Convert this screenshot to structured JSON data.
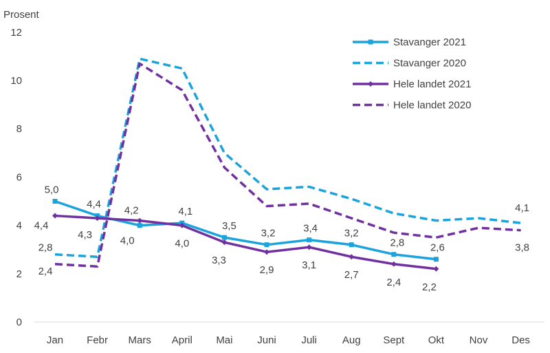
{
  "chart_data": {
    "type": "line",
    "ylabel": "Prosent",
    "ylim": [
      0,
      12
    ],
    "yticks": [
      "0",
      "2",
      "4",
      "6",
      "8",
      "10",
      "12"
    ],
    "categories": [
      "Jan",
      "Febr",
      "Mars",
      "April",
      "Mai",
      "Juni",
      "Juli",
      "Aug",
      "Sept",
      "Okt",
      "Nov",
      "Des"
    ],
    "grid": false,
    "legend_position": "top-right",
    "series": [
      {
        "name": "Stavanger 2021",
        "color": "#1aa3dc",
        "style": "solid-square",
        "values": [
          5.0,
          4.4,
          4.0,
          4.1,
          3.5,
          3.2,
          3.4,
          3.2,
          2.8,
          2.6,
          null,
          null
        ],
        "labels": [
          "5,0",
          "4,4",
          "4,0",
          "4,1",
          "3,5",
          "3,2",
          "3,4",
          "3,2",
          "2,8",
          "2,6",
          "",
          ""
        ]
      },
      {
        "name": "Stavanger 2020",
        "color": "#1aa3dc",
        "style": "dashed",
        "values": [
          2.8,
          2.7,
          10.9,
          10.5,
          7.0,
          5.5,
          5.6,
          5.1,
          4.5,
          4.2,
          4.3,
          4.1
        ],
        "labels": [
          "2,8",
          "",
          "",
          "",
          "",
          "",
          "",
          "",
          "",
          "",
          "",
          "4,1"
        ]
      },
      {
        "name": "Hele landet 2021",
        "color": "#7030a0",
        "style": "solid-diamond",
        "values": [
          4.4,
          4.3,
          4.2,
          4.0,
          3.3,
          2.9,
          3.1,
          2.7,
          2.4,
          2.2,
          null,
          null
        ],
        "labels": [
          "4,4",
          "4,3",
          "4,2",
          "4,0",
          "3,3",
          "2,9",
          "3,1",
          "2,7",
          "2,4",
          "2,2",
          "",
          ""
        ]
      },
      {
        "name": "Hele landet 2020",
        "color": "#7030a0",
        "style": "dashed",
        "values": [
          2.4,
          2.3,
          10.7,
          9.6,
          6.4,
          4.8,
          4.9,
          4.3,
          3.7,
          3.5,
          3.9,
          3.8
        ],
        "labels": [
          "2,4",
          "",
          "",
          "",
          "",
          "",
          "",
          "",
          "",
          "",
          "",
          "3,8"
        ]
      }
    ]
  }
}
